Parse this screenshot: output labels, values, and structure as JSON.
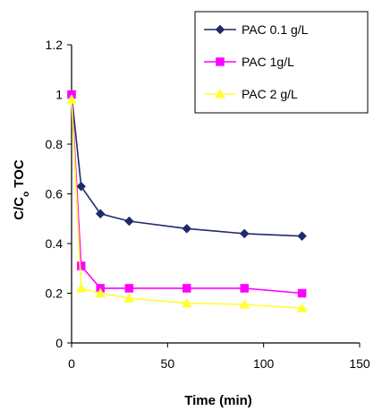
{
  "chart_data": {
    "type": "line",
    "xlabel": "Time (min)",
    "ylabel_main": "C/C",
    "ylabel_sub": "o",
    "ylabel_tail": " TOC",
    "xlim": [
      0,
      150
    ],
    "ylim": [
      0,
      1.2
    ],
    "x_ticks": [
      "0",
      "50",
      "100",
      "150"
    ],
    "y_ticks": [
      "0",
      "0.2",
      "0.4",
      "0.6",
      "0.8",
      "1",
      "1.2"
    ],
    "grid": false,
    "legend_position": "top-right",
    "series": [
      {
        "name": "PAC 0.1 g/L",
        "marker": "diamond",
        "color": "#1f2a6b",
        "x": [
          0,
          5,
          15,
          30,
          60,
          90,
          120
        ],
        "y": [
          1.0,
          0.63,
          0.52,
          0.49,
          0.46,
          0.44,
          0.43
        ]
      },
      {
        "name": "PAC 1g/L",
        "marker": "square",
        "color": "#ff00ff",
        "x": [
          0,
          5,
          15,
          30,
          60,
          90,
          120
        ],
        "y": [
          1.0,
          0.31,
          0.22,
          0.22,
          0.22,
          0.22,
          0.2
        ]
      },
      {
        "name": "PAC 2 g/L",
        "marker": "triangle",
        "color": "#ffff33",
        "x": [
          0,
          5,
          15,
          30,
          60,
          90,
          120
        ],
        "y": [
          0.98,
          0.22,
          0.2,
          0.18,
          0.16,
          0.155,
          0.14
        ]
      }
    ]
  }
}
